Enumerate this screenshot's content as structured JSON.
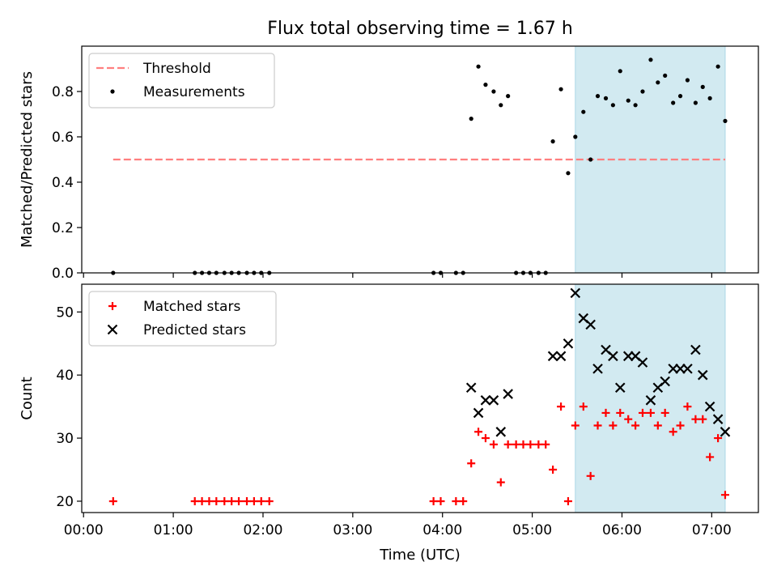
{
  "title": "Flux total observing time = 1.67 h",
  "colors": {
    "threshold": "#ff7f7f",
    "measurement": "#000000",
    "matched": "#ff0000",
    "predicted": "#000000",
    "shade": "#add8e6"
  },
  "chart_data": [
    {
      "type": "scatter",
      "panel": "top",
      "ylabel": "Matched/Predicted stars",
      "xlabel": "",
      "xlim_hours": [
        -0.02,
        7.52
      ],
      "ylim": [
        0,
        1.0
      ],
      "yticks": [
        0.0,
        0.2,
        0.4,
        0.6,
        0.8
      ],
      "ytick_labels": [
        "0.0",
        "0.2",
        "0.4",
        "0.6",
        "0.8"
      ],
      "shaded_interval_hours": [
        5.48,
        7.15
      ],
      "legend_position": "upper-left",
      "threshold": {
        "name": "Threshold",
        "y": 0.5,
        "x_range_hours": [
          0.33,
          7.15
        ]
      },
      "series": [
        {
          "name": "Measurements",
          "x_hours": [
            0.33,
            1.24,
            1.32,
            1.4,
            1.48,
            1.57,
            1.65,
            1.73,
            1.82,
            1.9,
            1.98,
            2.07,
            3.9,
            3.98,
            4.15,
            4.23,
            4.32,
            4.4,
            4.48,
            4.57,
            4.65,
            4.73,
            4.82,
            4.9,
            4.98,
            5.07,
            5.15,
            5.23,
            5.32,
            5.4,
            5.48,
            5.57,
            5.65,
            5.73,
            5.82,
            5.9,
            5.98,
            6.07,
            6.15,
            6.23,
            6.32,
            6.4,
            6.48,
            6.57,
            6.65,
            6.73,
            6.82,
            6.9,
            6.98,
            7.07,
            7.15
          ],
          "y": [
            0,
            0,
            0,
            0,
            0,
            0,
            0,
            0,
            0,
            0,
            0,
            0,
            0,
            0,
            0,
            0,
            0.68,
            0.91,
            0.83,
            0.8,
            0.74,
            0.78,
            0,
            0,
            0,
            0,
            0,
            0.58,
            0.81,
            0.44,
            0.6,
            0.71,
            0.5,
            0.78,
            0.77,
            0.74,
            0.89,
            0.76,
            0.74,
            0.8,
            0.94,
            0.84,
            0.87,
            0.75,
            0.78,
            0.85,
            0.75,
            0.82,
            0.77,
            0.91,
            0.67
          ]
        }
      ]
    },
    {
      "type": "scatter",
      "panel": "bottom",
      "ylabel": "Count",
      "xlabel": "Time (UTC)",
      "xlim_hours": [
        -0.02,
        7.52
      ],
      "ylim": [
        18.2,
        54.4
      ],
      "yticks": [
        20,
        30,
        40,
        50
      ],
      "ytick_labels": [
        "20",
        "30",
        "40",
        "50"
      ],
      "xticks_hours": [
        0,
        1,
        2,
        3,
        4,
        5,
        6,
        7
      ],
      "xtick_labels": [
        "00:00",
        "01:00",
        "02:00",
        "03:00",
        "04:00",
        "05:00",
        "06:00",
        "07:00"
      ],
      "shaded_interval_hours": [
        5.48,
        7.15
      ],
      "legend_position": "upper-left",
      "series": [
        {
          "name": "Matched stars",
          "marker": "plus",
          "x_hours": [
            0.33,
            1.24,
            1.32,
            1.4,
            1.48,
            1.57,
            1.65,
            1.73,
            1.82,
            1.9,
            1.98,
            2.07,
            3.9,
            3.98,
            4.15,
            4.23,
            4.32,
            4.4,
            4.48,
            4.57,
            4.65,
            4.73,
            4.82,
            4.9,
            4.98,
            5.07,
            5.15,
            5.23,
            5.32,
            5.4,
            5.48,
            5.57,
            5.65,
            5.73,
            5.82,
            5.9,
            5.98,
            6.07,
            6.15,
            6.23,
            6.32,
            6.4,
            6.48,
            6.57,
            6.65,
            6.73,
            6.82,
            6.9,
            6.98,
            7.07,
            7.15
          ],
          "y": [
            20,
            20,
            20,
            20,
            20,
            20,
            20,
            20,
            20,
            20,
            20,
            20,
            20,
            20,
            20,
            20,
            26,
            31,
            30,
            29,
            23,
            29,
            29,
            29,
            29,
            29,
            29,
            25,
            35,
            20,
            32,
            35,
            24,
            32,
            34,
            32,
            34,
            33,
            32,
            34,
            34,
            32,
            34,
            31,
            32,
            35,
            33,
            33,
            27,
            30,
            21
          ]
        },
        {
          "name": "Predicted stars",
          "marker": "x",
          "x_hours": [
            4.32,
            4.4,
            4.48,
            4.57,
            4.65,
            4.73,
            5.23,
            5.32,
            5.4,
            5.48,
            5.57,
            5.65,
            5.73,
            5.82,
            5.9,
            5.98,
            6.07,
            6.15,
            6.23,
            6.32,
            6.4,
            6.48,
            6.57,
            6.65,
            6.73,
            6.82,
            6.9,
            6.98,
            7.07,
            7.15
          ],
          "y": [
            38,
            34,
            36,
            36,
            31,
            37,
            43,
            43,
            45,
            53,
            49,
            48,
            41,
            44,
            43,
            38,
            43,
            43,
            42,
            36,
            38,
            39,
            41,
            41,
            41,
            44,
            40,
            35,
            33,
            31
          ]
        }
      ]
    }
  ]
}
